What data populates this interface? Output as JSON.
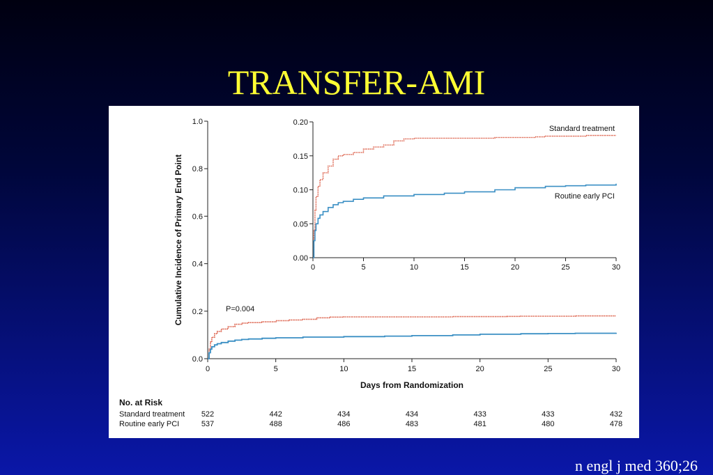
{
  "slide": {
    "title": "TRANSFER-AMI",
    "citation": "n engl j med 360;26"
  },
  "colors": {
    "background_top": "#000010",
    "background_bottom": "#0a17a8",
    "title": "#ffff33",
    "standard_series": "#d9523a",
    "pci_series": "#3a8fc4"
  },
  "chart_data": [
    {
      "type": "line",
      "title": "",
      "xlabel": "Days from Randomization",
      "ylabel": "Cumulative Incidence of Primary End Point",
      "xlim": [
        0,
        30
      ],
      "ylim": [
        0,
        1.0
      ],
      "x_ticks": [
        "0",
        "5",
        "10",
        "15",
        "20",
        "25",
        "30"
      ],
      "y_ticks": [
        "0.0",
        "0.2",
        "0.4",
        "0.6",
        "0.8",
        "1.0"
      ],
      "annotation": "P=0.004",
      "series": [
        {
          "name": "Standard treatment",
          "style": "dotted",
          "color": "#d9523a",
          "x": [
            0,
            0.1,
            0.2,
            0.3,
            0.5,
            0.7,
            1,
            1.5,
            2,
            2.5,
            3,
            4,
            5,
            6,
            7,
            8,
            9,
            10,
            12,
            15,
            18,
            20,
            22,
            23,
            25,
            27,
            30
          ],
          "y": [
            0,
            0.04,
            0.07,
            0.09,
            0.105,
            0.115,
            0.125,
            0.135,
            0.145,
            0.15,
            0.152,
            0.155,
            0.16,
            0.163,
            0.166,
            0.172,
            0.175,
            0.176,
            0.176,
            0.176,
            0.177,
            0.177,
            0.178,
            0.179,
            0.179,
            0.18,
            0.18
          ]
        },
        {
          "name": "Routine early PCI",
          "style": "solid",
          "color": "#3a8fc4",
          "x": [
            0,
            0.1,
            0.2,
            0.3,
            0.5,
            0.7,
            1,
            1.5,
            2,
            2.5,
            3,
            4,
            5,
            7,
            10,
            13,
            15,
            18,
            20,
            23,
            25,
            27,
            30
          ],
          "y": [
            0,
            0.025,
            0.04,
            0.05,
            0.058,
            0.063,
            0.068,
            0.074,
            0.078,
            0.081,
            0.083,
            0.086,
            0.088,
            0.091,
            0.093,
            0.095,
            0.097,
            0.1,
            0.103,
            0.105,
            0.106,
            0.107,
            0.109
          ]
        }
      ],
      "risk_table": {
        "title": "No. at Risk",
        "days": [
          0,
          5,
          10,
          15,
          20,
          25,
          30
        ],
        "rows": [
          {
            "label": "Standard treatment",
            "values": [
              "522",
              "442",
              "434",
              "434",
              "433",
              "433",
              "432"
            ]
          },
          {
            "label": "Routine early PCI",
            "values": [
              "537",
              "488",
              "486",
              "483",
              "481",
              "480",
              "478"
            ]
          }
        ]
      }
    },
    {
      "type": "line",
      "title": "",
      "xlabel": "",
      "ylabel": "",
      "xlim": [
        0,
        30
      ],
      "ylim": [
        0,
        0.2
      ],
      "x_ticks": [
        "0",
        "5",
        "10",
        "15",
        "20",
        "25",
        "30"
      ],
      "y_ticks": [
        "0.00",
        "0.05",
        "0.10",
        "0.15",
        "0.20"
      ],
      "series_labels": [
        "Standard treatment",
        "Routine early PCI"
      ],
      "series": "same as main chart (inset zoom)"
    }
  ]
}
